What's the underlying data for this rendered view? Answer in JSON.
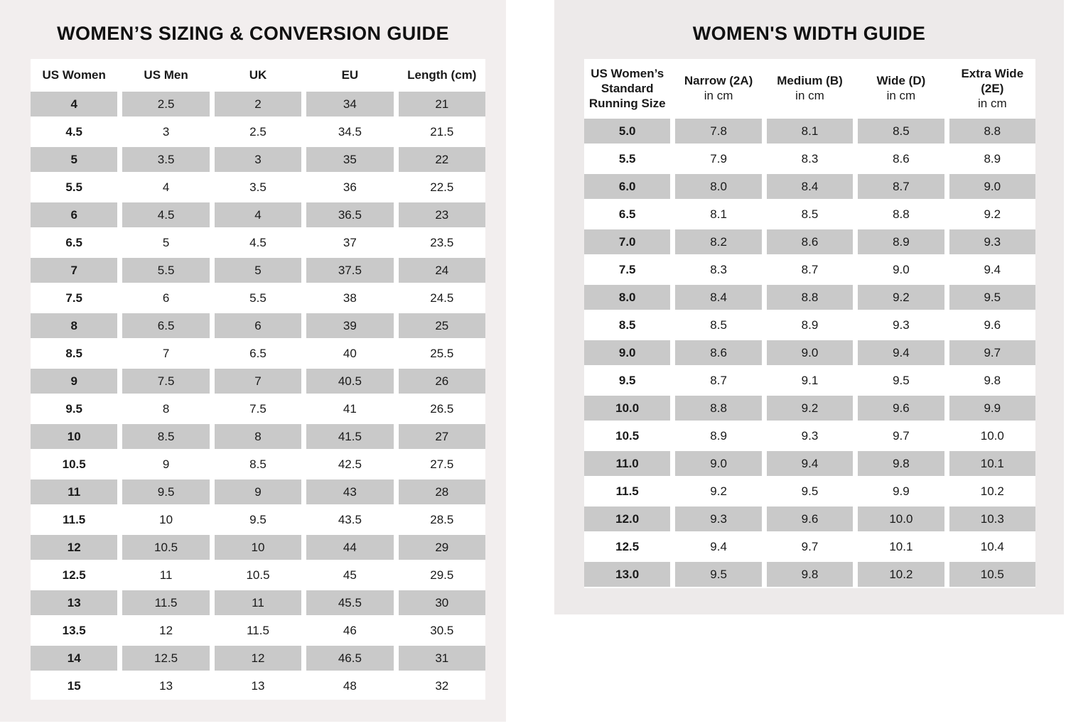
{
  "colors": {
    "page_bg": "#ffffff",
    "left_panel_bg": "#f2eeee",
    "right_panel_bg": "#edeaea",
    "shaded_row": "#c9c9c9",
    "text": "#1a1a1a"
  },
  "left_panel": {
    "title": "WOMEN’S SIZING & CONVERSION GUIDE",
    "table": {
      "headers": [
        "US Women",
        "US Men",
        "UK",
        "EU",
        "Length (cm)"
      ],
      "rows": [
        [
          "4",
          "2.5",
          "2",
          "34",
          "21"
        ],
        [
          "4.5",
          "3",
          "2.5",
          "34.5",
          "21.5"
        ],
        [
          "5",
          "3.5",
          "3",
          "35",
          "22"
        ],
        [
          "5.5",
          "4",
          "3.5",
          "36",
          "22.5"
        ],
        [
          "6",
          "4.5",
          "4",
          "36.5",
          "23"
        ],
        [
          "6.5",
          "5",
          "4.5",
          "37",
          "23.5"
        ],
        [
          "7",
          "5.5",
          "5",
          "37.5",
          "24"
        ],
        [
          "7.5",
          "6",
          "5.5",
          "38",
          "24.5"
        ],
        [
          "8",
          "6.5",
          "6",
          "39",
          "25"
        ],
        [
          "8.5",
          "7",
          "6.5",
          "40",
          "25.5"
        ],
        [
          "9",
          "7.5",
          "7",
          "40.5",
          "26"
        ],
        [
          "9.5",
          "8",
          "7.5",
          "41",
          "26.5"
        ],
        [
          "10",
          "8.5",
          "8",
          "41.5",
          "27"
        ],
        [
          "10.5",
          "9",
          "8.5",
          "42.5",
          "27.5"
        ],
        [
          "11",
          "9.5",
          "9",
          "43",
          "28"
        ],
        [
          "11.5",
          "10",
          "9.5",
          "43.5",
          "28.5"
        ],
        [
          "12",
          "10.5",
          "10",
          "44",
          "29"
        ],
        [
          "12.5",
          "11",
          "10.5",
          "45",
          "29.5"
        ],
        [
          "13",
          "11.5",
          "11",
          "45.5",
          "30"
        ],
        [
          "13.5",
          "12",
          "11.5",
          "46",
          "30.5"
        ],
        [
          "14",
          "12.5",
          "12",
          "46.5",
          "31"
        ],
        [
          "15",
          "13",
          "13",
          "48",
          "32"
        ]
      ]
    }
  },
  "right_panel": {
    "title": "WOMEN'S WIDTH GUIDE",
    "table": {
      "columns": [
        {
          "lines": [
            "US Women’s",
            "Standard",
            "Running Size"
          ],
          "sub": ""
        },
        {
          "lines": [
            "Narrow (2A)"
          ],
          "sub": "in cm"
        },
        {
          "lines": [
            "Medium (B)"
          ],
          "sub": "in cm"
        },
        {
          "lines": [
            "Wide (D)"
          ],
          "sub": "in cm"
        },
        {
          "lines": [
            "Extra Wide (2E)"
          ],
          "sub": "in cm"
        }
      ],
      "rows": [
        [
          "5.0",
          "7.8",
          "8.1",
          "8.5",
          "8.8"
        ],
        [
          "5.5",
          "7.9",
          "8.3",
          "8.6",
          "8.9"
        ],
        [
          "6.0",
          "8.0",
          "8.4",
          "8.7",
          "9.0"
        ],
        [
          "6.5",
          "8.1",
          "8.5",
          "8.8",
          "9.2"
        ],
        [
          "7.0",
          "8.2",
          "8.6",
          "8.9",
          "9.3"
        ],
        [
          "7.5",
          "8.3",
          "8.7",
          "9.0",
          "9.4"
        ],
        [
          "8.0",
          "8.4",
          "8.8",
          "9.2",
          "9.5"
        ],
        [
          "8.5",
          "8.5",
          "8.9",
          "9.3",
          "9.6"
        ],
        [
          "9.0",
          "8.6",
          "9.0",
          "9.4",
          "9.7"
        ],
        [
          "9.5",
          "8.7",
          "9.1",
          "9.5",
          "9.8"
        ],
        [
          "10.0",
          "8.8",
          "9.2",
          "9.6",
          "9.9"
        ],
        [
          "10.5",
          "8.9",
          "9.3",
          "9.7",
          "10.0"
        ],
        [
          "11.0",
          "9.0",
          "9.4",
          "9.8",
          "10.1"
        ],
        [
          "11.5",
          "9.2",
          "9.5",
          "9.9",
          "10.2"
        ],
        [
          "12.0",
          "9.3",
          "9.6",
          "10.0",
          "10.3"
        ],
        [
          "12.5",
          "9.4",
          "9.7",
          "10.1",
          "10.4"
        ],
        [
          "13.0",
          "9.5",
          "9.8",
          "10.2",
          "10.5"
        ]
      ]
    }
  }
}
